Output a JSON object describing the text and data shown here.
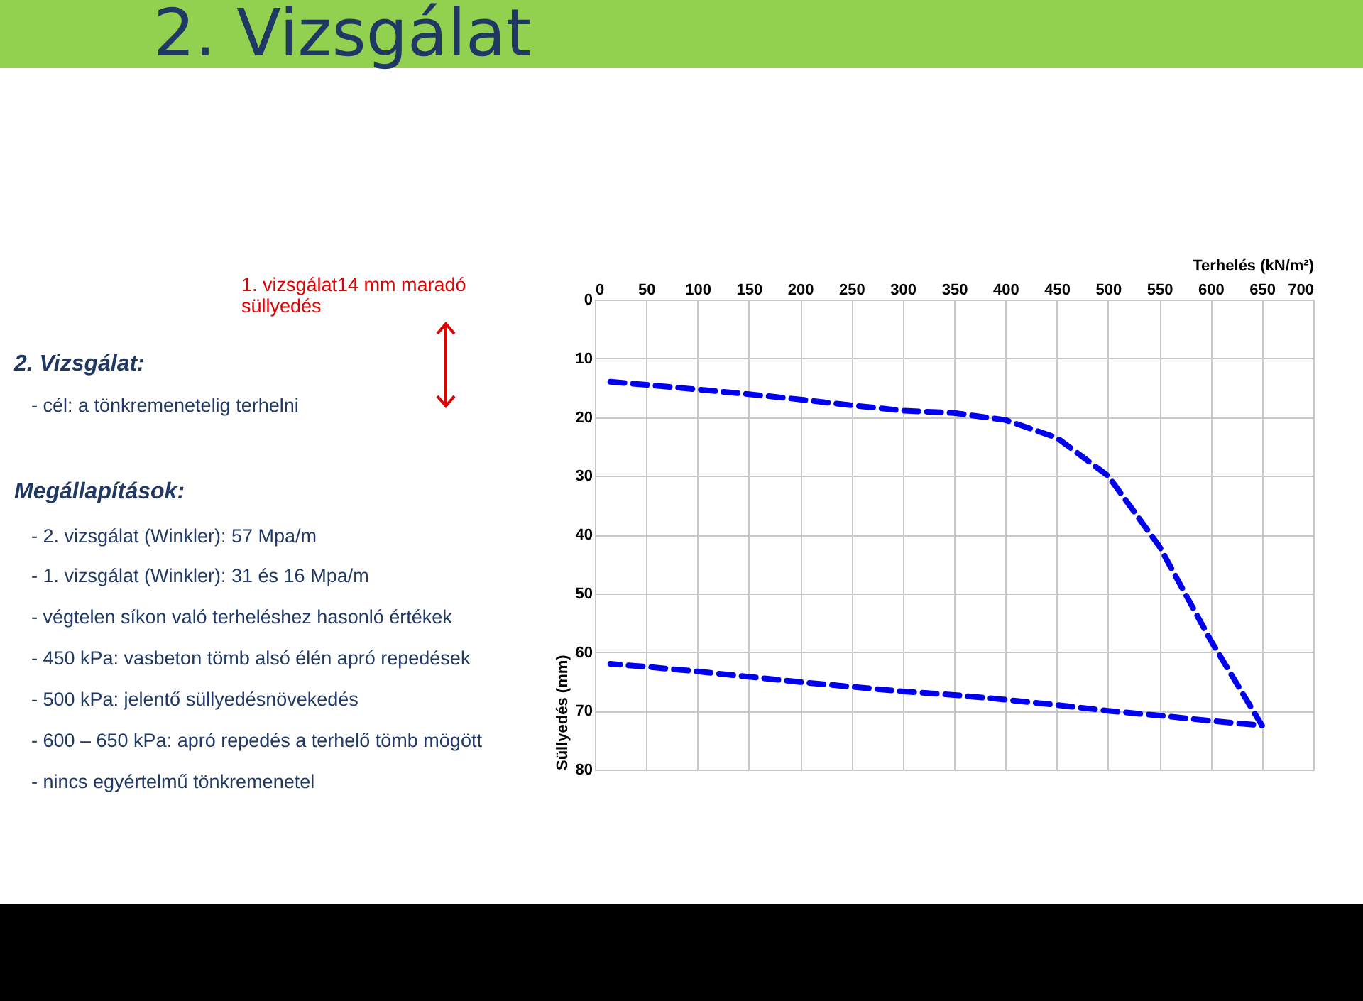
{
  "chart_data": {
    "type": "line",
    "title": "2. Vizsgálat",
    "xlabel": "Terhelés (kN/m²)",
    "ylabel": "Süllyedés (mm)",
    "x": [
      15,
      50,
      100,
      150,
      200,
      250,
      300,
      350,
      400,
      450,
      500,
      550,
      600,
      650,
      600,
      550,
      500,
      450,
      400,
      350,
      300,
      250,
      200,
      150,
      100,
      50,
      15
    ],
    "series": [
      {
        "color": "#0000ee",
        "values": [
          14,
          14.5,
          15.3,
          16.1,
          17,
          18,
          18.9,
          19.3,
          20.5,
          23.5,
          30,
          42,
          58,
          72.5,
          71.7,
          70.8,
          70,
          69,
          68.1,
          67.3,
          66.7,
          65.9,
          65.1,
          64.2,
          63.3,
          62.5,
          62
        ]
      }
    ],
    "xlim": [
      0,
      700
    ],
    "xticks": [
      0,
      50,
      100,
      150,
      200,
      250,
      300,
      350,
      400,
      450,
      500,
      550,
      600,
      650,
      700
    ],
    "ylim": [
      80,
      0
    ],
    "yticks": [
      0,
      10,
      20,
      30,
      40,
      50,
      60,
      70,
      80
    ],
    "grid": true,
    "line_style": "dashed",
    "marker": "none",
    "annotations": [
      "1. vizsgálat14 mm maradó süllyedés",
      "2. Vizsgálat:",
      "- cél: a tönkremenetelig terhelni",
      "Megállapítások:",
      "- 2. vizsgálat (Winkler): 57 Mpa/m",
      "- 1. vizsgálat (Winkler): 31 és 16 Mpa/m",
      "- végtelen síkon való terheléshez hasonló értékek",
      "- 450 kPa: vasbeton tömb alsó élén apró repedések",
      "- 500 kPa: jelentő süllyedésnövekedés",
      "- 600 – 650 kPa: apró repedés a terhelő tömb mögött",
      "- nincs egyértelmű tönkremenetel"
    ]
  }
}
